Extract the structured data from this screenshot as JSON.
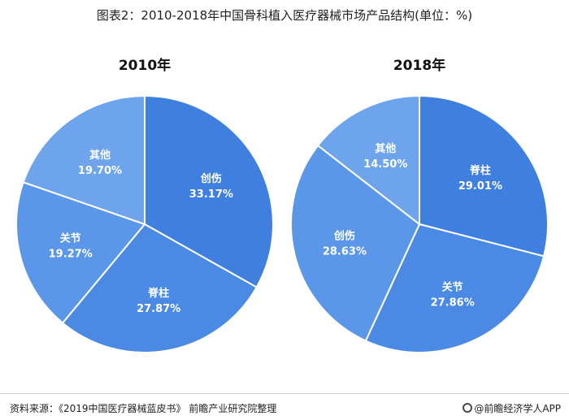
{
  "figure_title": "图表2：2010-2018年中国骨科植入医疗器械市场产品结构(单位：%)",
  "source": "资料来源：《2019中国医疗器械蓝皮书》 前瞻产业研究院整理",
  "brand": "@前瞻经济学人APP",
  "chart_data": [
    {
      "type": "pie",
      "title": "2010年",
      "slices": [
        {
          "label": "创伤",
          "value": 33.17,
          "display": "33.17%",
          "color": "#3f7fdf"
        },
        {
          "label": "脊柱",
          "value": 27.87,
          "display": "27.87%",
          "color": "#4b8ae4"
        },
        {
          "label": "关节",
          "value": 19.27,
          "display": "19.27%",
          "color": "#5a97e8"
        },
        {
          "label": "其他",
          "value": 19.7,
          "display": "19.70%",
          "color": "#6ea4eb"
        }
      ]
    },
    {
      "type": "pie",
      "title": "2018年",
      "slices": [
        {
          "label": "脊柱",
          "value": 29.01,
          "display": "29.01%",
          "color": "#3f7fdf"
        },
        {
          "label": "关节",
          "value": 27.86,
          "display": "27.86%",
          "color": "#4b8ae4"
        },
        {
          "label": "创伤",
          "value": 28.63,
          "display": "28.63%",
          "color": "#5a97e8"
        },
        {
          "label": "其他",
          "value": 14.5,
          "display": "14.50%",
          "color": "#6ea4eb"
        }
      ]
    }
  ]
}
